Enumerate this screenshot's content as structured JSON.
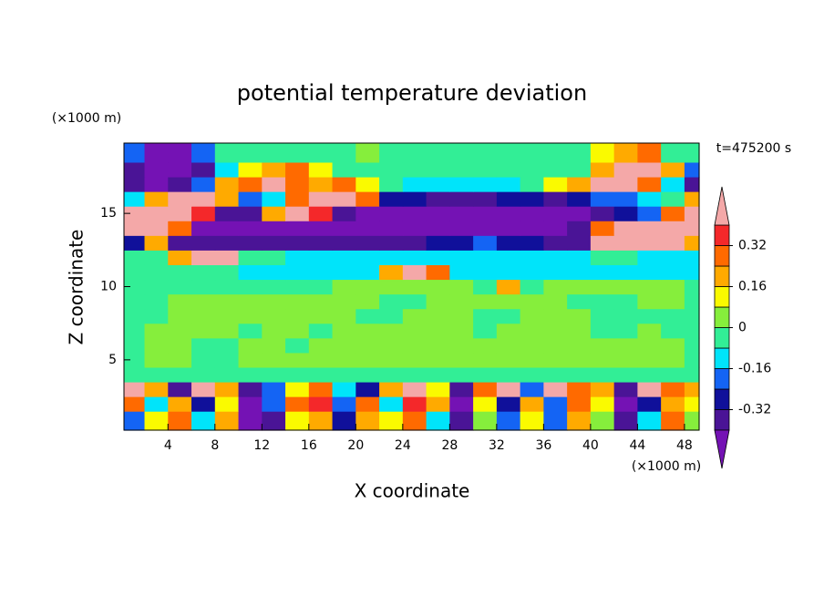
{
  "chart_data": {
    "type": "contour",
    "title": "potential temperature deviation",
    "x_label": "X coordinate",
    "y_label": "Z coordinate",
    "x_unit": "(×1000 m)",
    "y_unit": "(×1000 m)",
    "annotation": "t=475200 s",
    "xlim": [
      0.25,
      49.25
    ],
    "ylim": [
      0.2,
      19.8
    ],
    "xticks": [
      4,
      8,
      12,
      16,
      20,
      24,
      28,
      32,
      36,
      40,
      44,
      48
    ],
    "yticks": [
      5,
      10,
      15
    ],
    "x": [
      1,
      3,
      5,
      7,
      9,
      11,
      13,
      15,
      17,
      19,
      21,
      23,
      25,
      27,
      29,
      31,
      33,
      35,
      37,
      39,
      41,
      43,
      45,
      47,
      49
    ],
    "y": [
      1,
      2,
      3,
      4,
      5,
      6,
      7,
      8,
      9,
      10,
      11,
      12,
      13,
      14,
      15,
      16,
      17,
      18,
      19
    ],
    "levels": [
      -0.4,
      -0.32,
      -0.24,
      -0.16,
      -0.08,
      0,
      0.08,
      0.16,
      0.24,
      0.32,
      0.4
    ],
    "colors": [
      "#7412b4",
      "#4a1496",
      "#10109a",
      "#1464f4",
      "#00e4fa",
      "#32ee96",
      "#86ee3c",
      "#fafa00",
      "#ffaa00",
      "#ff6a00",
      "#f4282a",
      "#f4a8a8"
    ],
    "colorbar_ticks": [
      -0.32,
      -0.16,
      0,
      0.16,
      0.32
    ],
    "z_values": [
      [
        -0.2,
        0.12,
        0.28,
        -0.12,
        0.2,
        -0.45,
        -0.36,
        0.12,
        0.2,
        -0.28,
        0.2,
        0.12,
        0.28,
        -0.12,
        -0.36,
        0.04,
        -0.2,
        0.12,
        -0.2,
        0.2,
        0.04,
        -0.36,
        -0.12,
        0.28,
        0.04
      ],
      [
        0.28,
        -0.12,
        0.2,
        -0.28,
        0.12,
        -0.45,
        -0.2,
        0.28,
        0.36,
        -0.2,
        0.28,
        -0.12,
        0.36,
        0.2,
        -0.45,
        0.12,
        -0.28,
        0.2,
        -0.2,
        0.28,
        0.12,
        -0.45,
        -0.28,
        0.2,
        0.12
      ],
      [
        0.45,
        0.2,
        -0.36,
        0.45,
        0.2,
        -0.36,
        -0.2,
        0.12,
        0.28,
        -0.12,
        -0.28,
        0.2,
        0.45,
        0.12,
        -0.36,
        0.28,
        0.45,
        -0.2,
        0.45,
        0.28,
        0.2,
        -0.36,
        0.45,
        0.28,
        0.2
      ],
      [
        -0.04,
        -0.04,
        -0.04,
        -0.04,
        -0.04,
        -0.04,
        -0.04,
        -0.04,
        -0.04,
        -0.04,
        -0.04,
        -0.04,
        -0.04,
        -0.04,
        -0.04,
        -0.04,
        -0.04,
        -0.04,
        -0.04,
        -0.04,
        -0.04,
        -0.04,
        -0.04,
        -0.04,
        -0.04
      ],
      [
        -0.04,
        0.04,
        0.04,
        -0.04,
        -0.04,
        0.04,
        0.04,
        0.04,
        0.04,
        0.04,
        0.04,
        0.04,
        0.04,
        0.04,
        0.04,
        0.04,
        0.04,
        0.04,
        0.04,
        0.04,
        0.04,
        0.04,
        0.04,
        0.04,
        -0.04
      ],
      [
        -0.04,
        0.04,
        0.04,
        -0.04,
        -0.04,
        0.04,
        0.04,
        -0.04,
        0.04,
        0.04,
        0.04,
        0.04,
        0.04,
        0.04,
        0.04,
        0.04,
        0.04,
        0.04,
        0.04,
        0.04,
        0.04,
        0.04,
        0.04,
        0.04,
        -0.04
      ],
      [
        -0.04,
        0.04,
        0.04,
        0.04,
        0.04,
        -0.04,
        0.04,
        0.04,
        -0.04,
        0.04,
        0.04,
        0.04,
        0.04,
        0.04,
        0.04,
        -0.04,
        0.04,
        0.04,
        0.04,
        0.04,
        -0.04,
        -0.04,
        0.04,
        -0.04,
        -0.04
      ],
      [
        -0.04,
        -0.04,
        0.04,
        0.04,
        0.04,
        0.04,
        0.04,
        0.04,
        0.04,
        0.04,
        -0.04,
        -0.04,
        0.04,
        0.04,
        0.04,
        -0.04,
        -0.04,
        0.04,
        0.04,
        0.04,
        -0.04,
        -0.04,
        -0.04,
        -0.04,
        -0.04
      ],
      [
        -0.04,
        -0.04,
        0.04,
        0.04,
        0.04,
        0.04,
        0.04,
        0.04,
        0.04,
        0.04,
        0.04,
        -0.04,
        -0.04,
        0.04,
        0.04,
        0.04,
        0.04,
        0.04,
        0.04,
        -0.04,
        -0.04,
        -0.04,
        0.04,
        0.04,
        -0.04
      ],
      [
        -0.04,
        -0.04,
        -0.04,
        -0.04,
        -0.04,
        -0.04,
        -0.04,
        -0.04,
        -0.04,
        0.04,
        0.04,
        0.04,
        0.04,
        0.04,
        0.04,
        -0.04,
        0.2,
        -0.04,
        0.04,
        0.04,
        0.04,
        0.04,
        0.04,
        0.04,
        -0.04
      ],
      [
        -0.04,
        -0.04,
        -0.04,
        -0.04,
        -0.04,
        -0.12,
        -0.12,
        -0.12,
        -0.12,
        -0.12,
        -0.12,
        0.2,
        0.45,
        0.28,
        -0.12,
        -0.12,
        -0.12,
        -0.12,
        -0.12,
        -0.12,
        -0.12,
        -0.12,
        -0.12,
        -0.12,
        -0.12
      ],
      [
        -0.04,
        -0.04,
        0.2,
        0.45,
        0.45,
        -0.04,
        -0.04,
        -0.12,
        -0.12,
        -0.12,
        -0.12,
        -0.12,
        -0.12,
        -0.12,
        -0.12,
        -0.12,
        -0.12,
        -0.12,
        -0.12,
        -0.12,
        -0.04,
        -0.04,
        -0.12,
        -0.12,
        -0.12
      ],
      [
        -0.28,
        0.2,
        -0.36,
        -0.36,
        -0.36,
        -0.36,
        -0.36,
        -0.36,
        -0.36,
        -0.36,
        -0.36,
        -0.36,
        -0.36,
        -0.28,
        -0.28,
        -0.2,
        -0.28,
        -0.28,
        -0.36,
        -0.36,
        0.45,
        0.45,
        0.45,
        0.45,
        0.2
      ],
      [
        0.45,
        0.45,
        0.28,
        -0.45,
        -0.45,
        -0.45,
        -0.45,
        -0.45,
        -0.45,
        -0.45,
        -0.45,
        -0.45,
        -0.45,
        -0.45,
        -0.45,
        -0.45,
        -0.45,
        -0.45,
        -0.45,
        -0.36,
        0.28,
        0.45,
        0.45,
        0.45,
        0.45
      ],
      [
        0.45,
        0.45,
        0.45,
        0.36,
        -0.36,
        -0.36,
        0.2,
        0.45,
        0.36,
        -0.36,
        -0.45,
        -0.45,
        -0.45,
        -0.45,
        -0.45,
        -0.45,
        -0.45,
        -0.45,
        -0.45,
        -0.45,
        -0.36,
        -0.28,
        -0.2,
        0.28,
        0.45
      ],
      [
        -0.12,
        0.2,
        0.45,
        0.45,
        0.2,
        -0.2,
        -0.12,
        0.28,
        0.45,
        0.45,
        0.28,
        -0.28,
        -0.28,
        -0.36,
        -0.36,
        -0.36,
        -0.28,
        -0.28,
        -0.36,
        -0.28,
        -0.2,
        -0.2,
        -0.12,
        -0.04,
        0.2
      ],
      [
        -0.36,
        -0.45,
        -0.36,
        -0.2,
        0.2,
        0.28,
        0.45,
        0.28,
        0.2,
        0.28,
        0.12,
        -0.04,
        -0.12,
        -0.12,
        -0.12,
        -0.12,
        -0.12,
        -0.04,
        0.12,
        0.2,
        0.45,
        0.45,
        0.28,
        -0.12,
        -0.36
      ],
      [
        -0.36,
        -0.45,
        -0.45,
        -0.36,
        -0.12,
        0.12,
        0.2,
        0.28,
        0.12,
        -0.04,
        -0.04,
        -0.04,
        -0.04,
        -0.04,
        -0.04,
        -0.04,
        -0.04,
        -0.04,
        -0.04,
        -0.04,
        0.2,
        0.45,
        0.45,
        0.2,
        -0.2
      ],
      [
        -0.2,
        -0.45,
        -0.45,
        -0.2,
        -0.04,
        -0.04,
        -0.04,
        -0.04,
        -0.04,
        -0.04,
        0.04,
        -0.04,
        -0.04,
        -0.04,
        -0.04,
        -0.04,
        -0.04,
        -0.04,
        -0.04,
        -0.04,
        0.12,
        0.2,
        0.28,
        -0.04,
        -0.04
      ]
    ]
  }
}
